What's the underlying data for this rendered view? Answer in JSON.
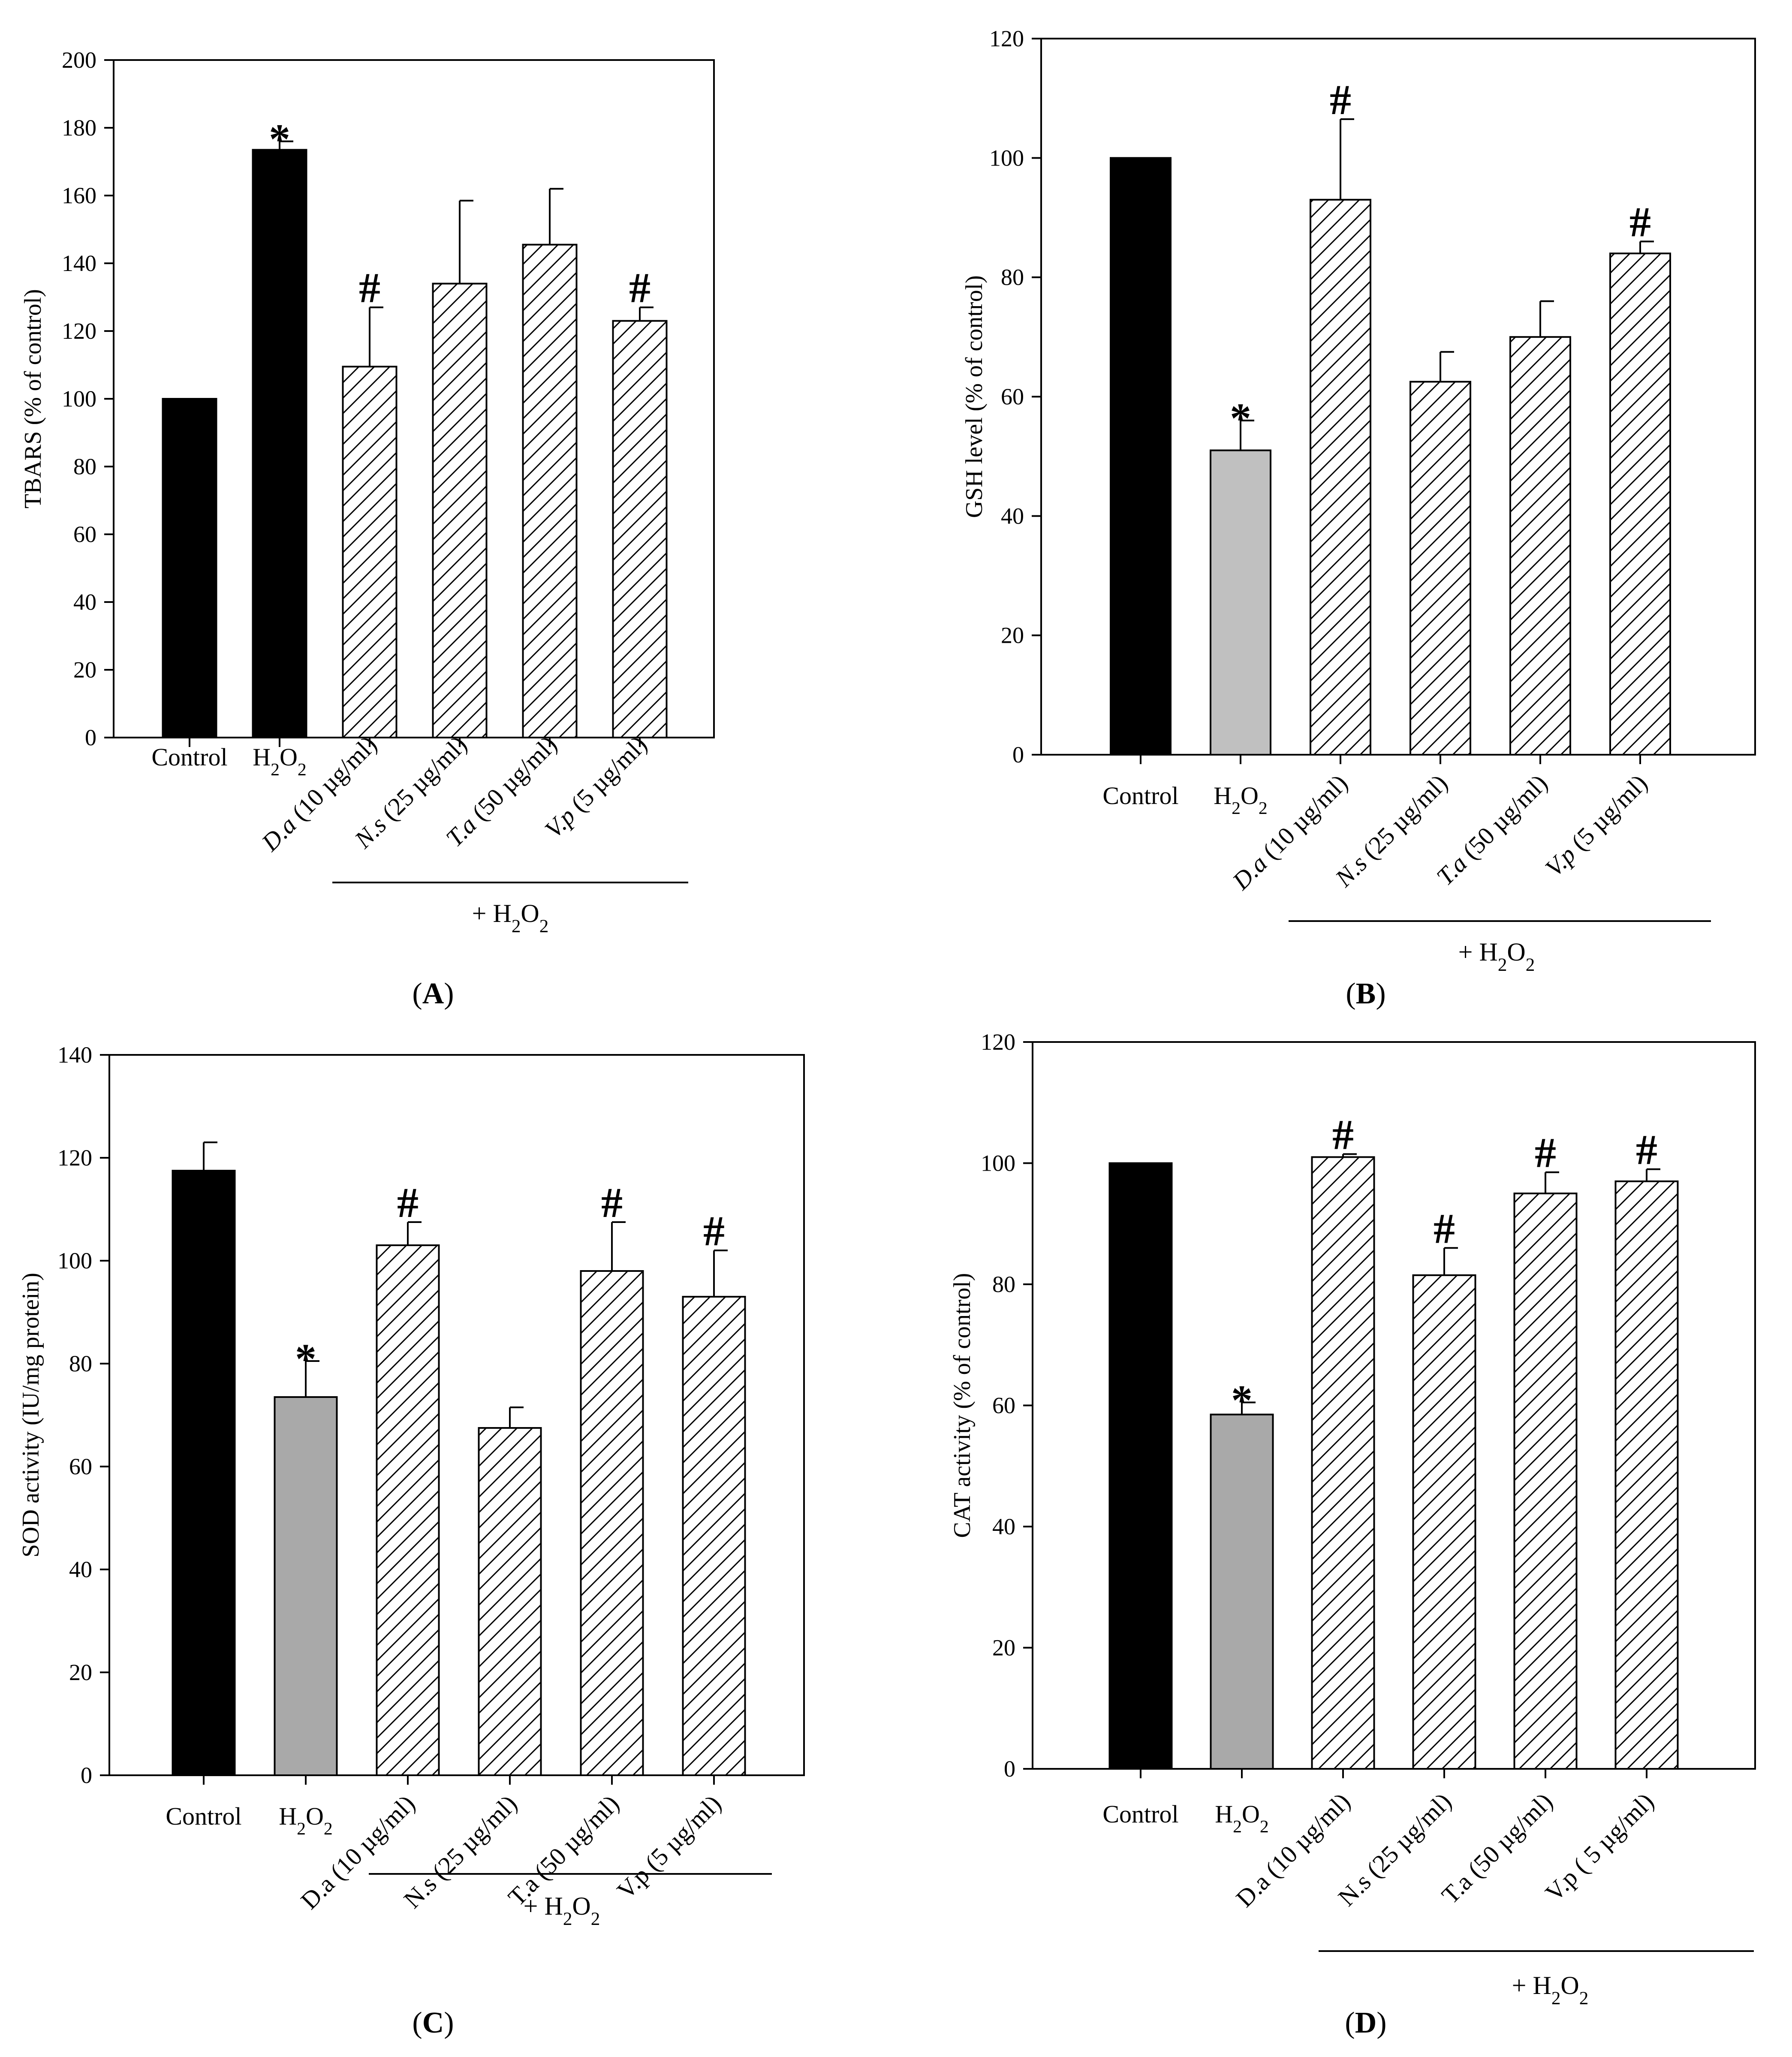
{
  "chart_data": [
    {
      "type": "bar",
      "panel_label": "A",
      "ylabel": "TBARS (% of control)",
      "ylim": [
        0,
        200
      ],
      "yticks": [
        0,
        20,
        40,
        60,
        80,
        100,
        120,
        140,
        160,
        180,
        200
      ],
      "categories": [
        "Control",
        "H2O2",
        "D.a (10 µg/ml)",
        "N.s (25 µg/ml)",
        "T.a (50 µg/ml)",
        "V.p (5 µg/ml)"
      ],
      "category_display": [
        {
          "text": "Control"
        },
        {
          "text": "H",
          "sub": "2",
          "text2": "O",
          "sub2": "2"
        },
        {
          "ital": "D.a",
          "text": " (10 µg/ml)"
        },
        {
          "ital": "N.s",
          "text": " (25 µg/ml)"
        },
        {
          "ital": "T.a",
          "text": " (50 µg/ml)"
        },
        {
          "ital": "V.p",
          "text": " (5 µg/ml)"
        }
      ],
      "values": [
        100,
        173.5,
        109.5,
        134,
        145.5,
        123
      ],
      "errors": [
        0,
        2.5,
        17.5,
        24.5,
        16.5,
        4
      ],
      "markers": [
        "",
        "*",
        "#",
        "",
        "",
        "#"
      ],
      "group_label": {
        "prefix": "+ H",
        "sub": "2",
        "mid": "O",
        "sub2": "2"
      }
    },
    {
      "type": "bar",
      "panel_label": "B",
      "ylabel": "GSH level (% of control)",
      "ylim": [
        0,
        120
      ],
      "yticks": [
        0,
        20,
        40,
        60,
        80,
        100,
        120
      ],
      "categories": [
        "Control",
        "H2O2",
        "D.a (10 µg/ml)",
        "N.s (25 µg/ml)",
        "T.a (50 µg/ml)",
        "V.p (5 µg/ml)"
      ],
      "category_display": [
        {
          "text": "Control"
        },
        {
          "text": "H",
          "sub": "2",
          "text2": "O",
          "sub2": "2"
        },
        {
          "ital": "D.a",
          "text": " (10 µg/ml)"
        },
        {
          "ital": "N.s",
          "text": " (25 µg/ml)"
        },
        {
          "ital": "T.a",
          "text": " (50 µg/ml)"
        },
        {
          "ital": "V.p",
          "text": " (5 µg/ml)"
        }
      ],
      "values": [
        100,
        51,
        93,
        62.5,
        70,
        84
      ],
      "errors": [
        0,
        5,
        13.5,
        5,
        6,
        2
      ],
      "markers": [
        "",
        "*",
        "#",
        "",
        "",
        "#"
      ],
      "group_label": {
        "prefix": "+ H",
        "sub": "2",
        "mid": "O",
        "sub2": "2"
      }
    },
    {
      "type": "bar",
      "panel_label": "C",
      "ylabel": "SOD activity (IU/mg protein)",
      "ylim": [
        0,
        140
      ],
      "yticks": [
        0,
        20,
        40,
        60,
        80,
        100,
        120,
        140
      ],
      "categories": [
        "Control",
        "H2O2",
        "D.a (10 µg/ml)",
        "N.s (25 µg/ml)",
        "T.a (50 µg/ml)",
        "V.p (5 µg/ml)"
      ],
      "category_display": [
        {
          "text": "Control"
        },
        {
          "text": "H",
          "sub": "2",
          "text2": "O",
          "sub2": "2"
        },
        {
          "text": "D.a (10 µg/ml)"
        },
        {
          "text": "N.s (25 µg/ml)"
        },
        {
          "text": "T.a (50 µg/ml)"
        },
        {
          "text": "V.p (5 µg/ml)"
        }
      ],
      "values": [
        117.5,
        73.5,
        103,
        67.5,
        98,
        93
      ],
      "errors": [
        5.5,
        7,
        4.5,
        4,
        9.5,
        9
      ],
      "markers": [
        "",
        "*",
        "#",
        "",
        "#",
        "#"
      ],
      "group_label": {
        "prefix": "+ H",
        "sub": "2",
        "mid": "O",
        "sub2": "2"
      }
    },
    {
      "type": "bar",
      "panel_label": "D",
      "ylabel": "CAT activity (% of control)",
      "ylim": [
        0,
        120
      ],
      "yticks": [
        0,
        20,
        40,
        60,
        80,
        100,
        120
      ],
      "categories": [
        "Control",
        "H2O2",
        "D.a (10 µg/ml)",
        "N.s (25 µg/ml)",
        "T.a (50 µg/ml)",
        "V.p ( 5 µg/ml)"
      ],
      "category_display": [
        {
          "text": "Control"
        },
        {
          "text": "H",
          "sub": "2",
          "text2": "O",
          "sub2": "2"
        },
        {
          "text": "D.a (10 µg/ml)"
        },
        {
          "text": "N.s (25 µg/ml)"
        },
        {
          "text": "T.a (50 µg/ml)"
        },
        {
          "text": "V.p ( 5 µg/ml)"
        }
      ],
      "values": [
        100,
        58.5,
        101,
        81.5,
        95,
        97
      ],
      "errors": [
        0,
        2,
        0.5,
        4.5,
        3.5,
        2
      ],
      "markers": [
        "",
        "*",
        "#",
        "#",
        "#",
        "#"
      ],
      "group_label": {
        "prefix": "+ H",
        "sub": "2",
        "mid": "O",
        "sub2": "2"
      }
    }
  ]
}
